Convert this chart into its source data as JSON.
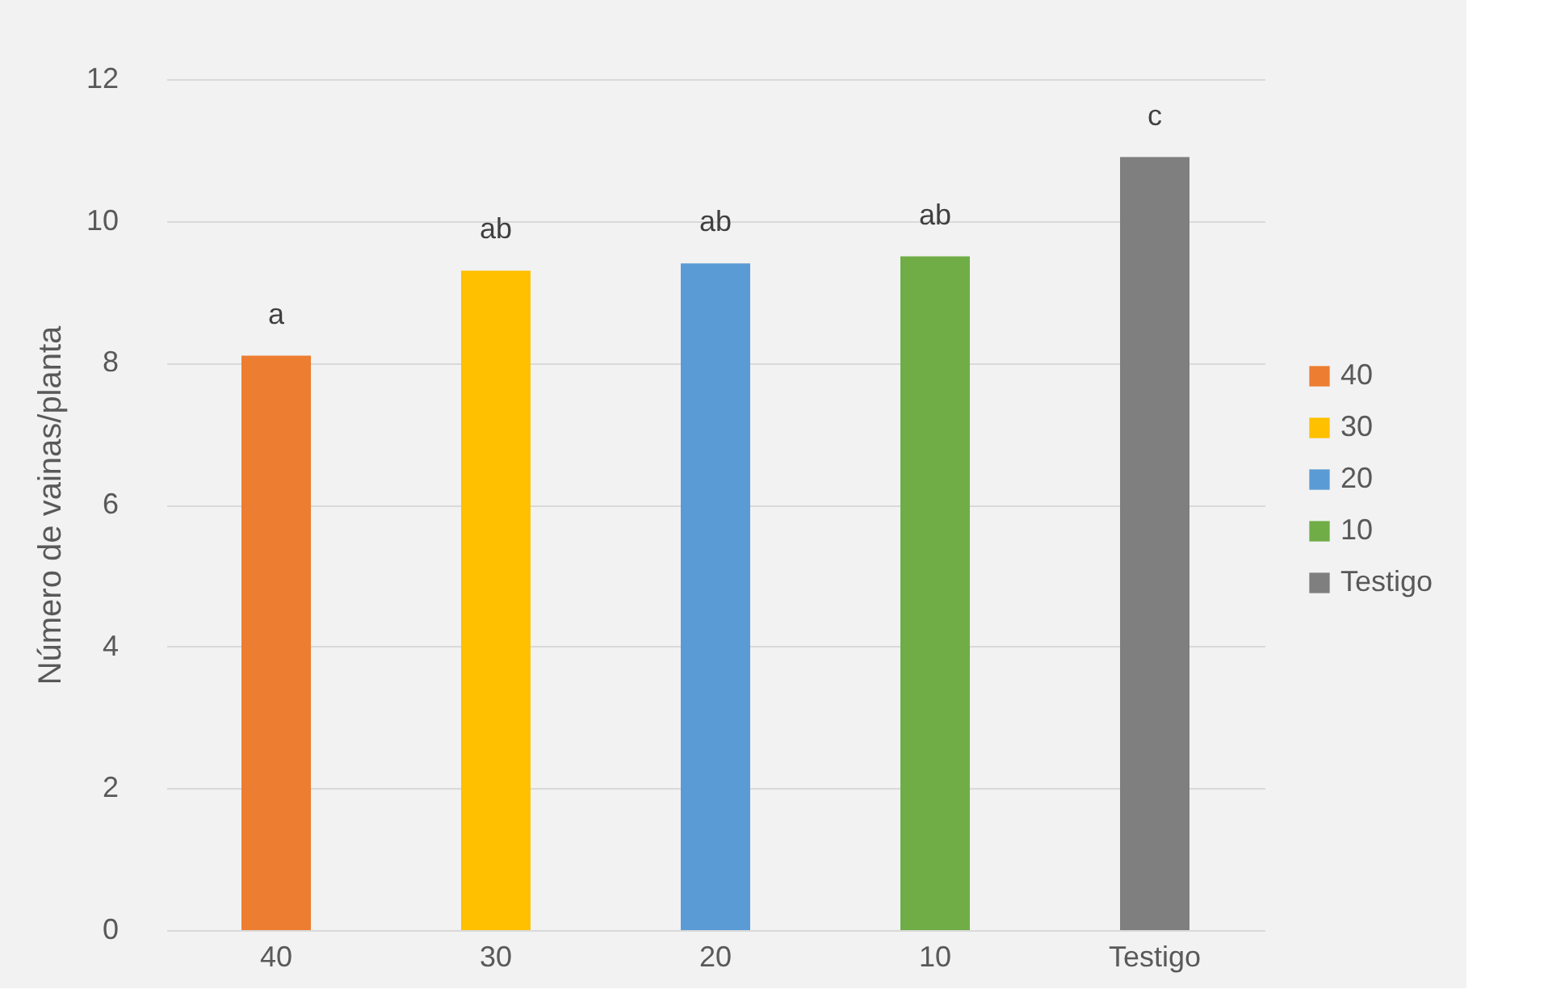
{
  "chart_data": {
    "type": "bar",
    "ylabel": "Número de vainas/planta",
    "categories": [
      "40",
      "30",
      "20",
      "10",
      "Testigo"
    ],
    "series": [
      {
        "name": "40",
        "color": "#ed7d31",
        "values": [
          8.1,
          null,
          null,
          null,
          null
        ]
      },
      {
        "name": "30",
        "color": "#ffc000",
        "values": [
          null,
          9.3,
          null,
          null,
          null
        ]
      },
      {
        "name": "20",
        "color": "#5b9bd5",
        "values": [
          null,
          null,
          9.4,
          null,
          null
        ]
      },
      {
        "name": "10",
        "color": "#70ad47",
        "values": [
          null,
          null,
          null,
          9.5,
          null
        ]
      },
      {
        "name": "Testigo",
        "color": "#7f7f7f",
        "values": [
          null,
          null,
          null,
          null,
          10.9
        ]
      }
    ],
    "ylim": [
      0,
      12
    ],
    "yticks": [
      0,
      2,
      4,
      6,
      8,
      10,
      12
    ],
    "grid": "y",
    "legend": "right",
    "annotations": [
      {
        "text": "a",
        "x": "40",
        "y": 8.1
      },
      {
        "text": "ab",
        "x": "30",
        "y": 9.3
      },
      {
        "text": "ab",
        "x": "20",
        "y": 9.4
      },
      {
        "text": "ab",
        "x": "10",
        "y": 9.5
      },
      {
        "text": "c",
        "x": "Testigo",
        "y": 10.9
      }
    ]
  }
}
